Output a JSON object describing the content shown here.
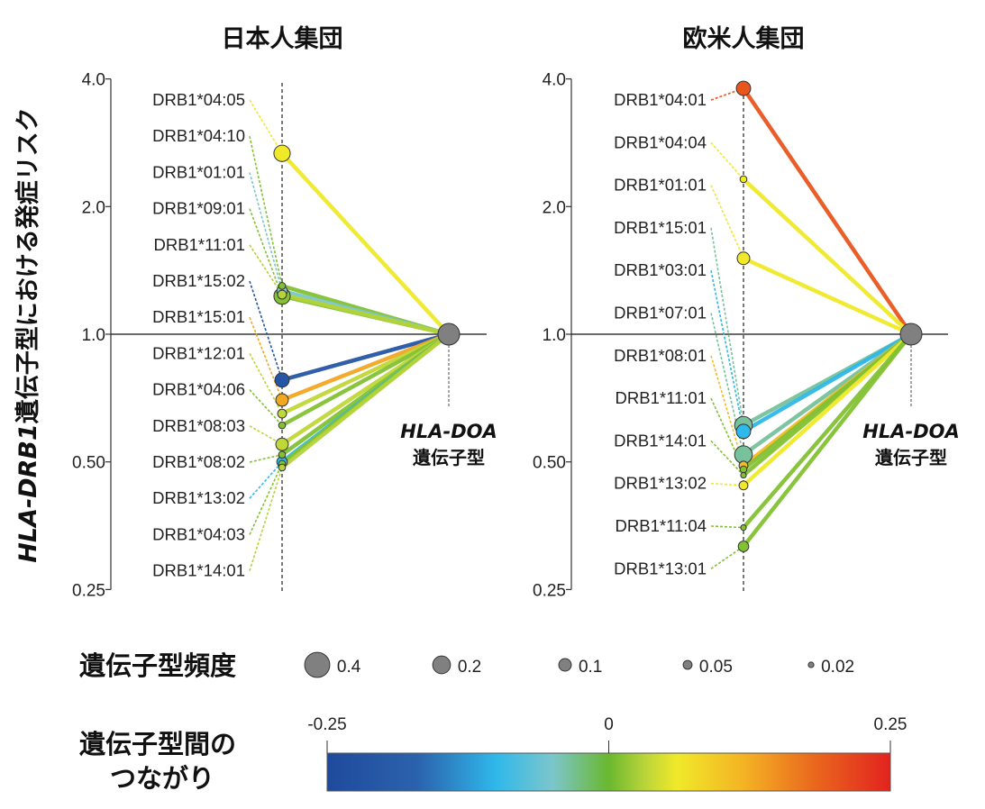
{
  "chart_data": {
    "type": "line",
    "ylabel_italic": "HLA-DRB1",
    "ylabel_rest": "遺伝子型における発症リスク",
    "y_scale": "log2",
    "ylim": [
      0.25,
      4.0
    ],
    "yticks": [
      "4.0",
      "2.0",
      "1.0",
      "0.50",
      "0.25"
    ],
    "ytick_values": [
      4.0,
      2.0,
      1.0,
      0.5,
      0.25
    ],
    "reference_line": 1.0,
    "node_label_italic": "HLA-DOA",
    "node_label_sub": "遺伝子型",
    "panels": [
      {
        "title": "日本人集団",
        "alleles": [
          {
            "name": "DRB1*04:05",
            "risk": 2.67,
            "frequency": 0.17,
            "connectivity": 0.06
          },
          {
            "name": "DRB1*04:10",
            "risk": 1.3,
            "frequency": 0.03,
            "connectivity": 0.01
          },
          {
            "name": "DRB1*01:01",
            "risk": 1.265,
            "frequency": 0.07,
            "connectivity": -0.05
          },
          {
            "name": "DRB1*09:01",
            "risk": 1.23,
            "frequency": 0.17,
            "connectivity": 0.01
          },
          {
            "name": "DRB1*11:01",
            "risk": 1.24,
            "frequency": 0.05,
            "connectivity": 0.03
          },
          {
            "name": "DRB1*15:02",
            "risk": 0.78,
            "frequency": 0.13,
            "connectivity": -0.21
          },
          {
            "name": "DRB1*15:01",
            "risk": 0.7,
            "frequency": 0.1,
            "connectivity": 0.13
          },
          {
            "name": "DRB1*12:01",
            "risk": 0.65,
            "frequency": 0.05,
            "connectivity": 0.035
          },
          {
            "name": "DRB1*04:06",
            "risk": 0.61,
            "frequency": 0.03,
            "connectivity": 0.01
          },
          {
            "name": "DRB1*08:03",
            "risk": 0.55,
            "frequency": 0.1,
            "connectivity": 0.035
          },
          {
            "name": "DRB1*08:02",
            "risk": 0.52,
            "frequency": 0.03,
            "connectivity": 0.01
          },
          {
            "name": "DRB1*13:02",
            "risk": 0.5,
            "frequency": 0.07,
            "connectivity": -0.1
          },
          {
            "name": "DRB1*04:03",
            "risk": 0.495,
            "frequency": 0.03,
            "connectivity": 0.01
          },
          {
            "name": "DRB1*14:01",
            "risk": 0.485,
            "frequency": 0.03,
            "connectivity": 0.03
          }
        ]
      },
      {
        "title": "欧米人集団",
        "alleles": [
          {
            "name": "DRB1*04:01",
            "risk": 3.8,
            "frequency": 0.13,
            "connectivity": 0.2
          },
          {
            "name": "DRB1*04:04",
            "risk": 2.32,
            "frequency": 0.03,
            "connectivity": 0.06
          },
          {
            "name": "DRB1*01:01",
            "risk": 1.51,
            "frequency": 0.1,
            "connectivity": 0.06
          },
          {
            "name": "DRB1*15:01",
            "risk": 0.61,
            "frequency": 0.2,
            "connectivity": -0.035
          },
          {
            "name": "DRB1*03:01",
            "risk": 0.59,
            "frequency": 0.13,
            "connectivity": -0.1
          },
          {
            "name": "DRB1*07:01",
            "risk": 0.52,
            "frequency": 0.2,
            "connectivity": -0.035
          },
          {
            "name": "DRB1*08:01",
            "risk": 0.49,
            "frequency": 0.05,
            "connectivity": 0.11
          },
          {
            "name": "DRB1*11:01",
            "risk": 0.48,
            "frequency": 0.03,
            "connectivity": 0.01
          },
          {
            "name": "DRB1*14:01",
            "risk": 0.465,
            "frequency": 0.02,
            "connectivity": 0.01
          },
          {
            "name": "DRB1*13:02",
            "risk": 0.44,
            "frequency": 0.05,
            "connectivity": 0.06
          },
          {
            "name": "DRB1*11:04",
            "risk": 0.35,
            "frequency": 0.02,
            "connectivity": 0.01
          },
          {
            "name": "DRB1*13:01",
            "risk": 0.316,
            "frequency": 0.07,
            "connectivity": 0.01
          }
        ]
      }
    ],
    "size_legend": {
      "title": "遺伝子型頻度",
      "values": [
        0.4,
        0.2,
        0.1,
        0.05,
        0.02
      ],
      "labels": [
        "0.4",
        "0.2",
        "0.1",
        "0.05",
        "0.02"
      ]
    },
    "color_legend": {
      "title_line1": "遺伝子型間の",
      "title_line2": "つながり",
      "range": [
        -0.25,
        0.25
      ],
      "tick_labels": [
        "-0.25",
        "0",
        "0.25"
      ],
      "stops": [
        {
          "value": -0.25,
          "color": "#1f4a9c"
        },
        {
          "value": -0.17,
          "color": "#2b62ad"
        },
        {
          "value": -0.1,
          "color": "#2fb8ea"
        },
        {
          "value": -0.05,
          "color": "#7cc6cc"
        },
        {
          "value": 0.0,
          "color": "#6ab82f"
        },
        {
          "value": 0.03,
          "color": "#b5d33a"
        },
        {
          "value": 0.06,
          "color": "#f0e92a"
        },
        {
          "value": 0.12,
          "color": "#f4b324"
        },
        {
          "value": 0.18,
          "color": "#ea6a1e"
        },
        {
          "value": 0.25,
          "color": "#e2231f"
        }
      ]
    },
    "node_color": "#808080"
  }
}
